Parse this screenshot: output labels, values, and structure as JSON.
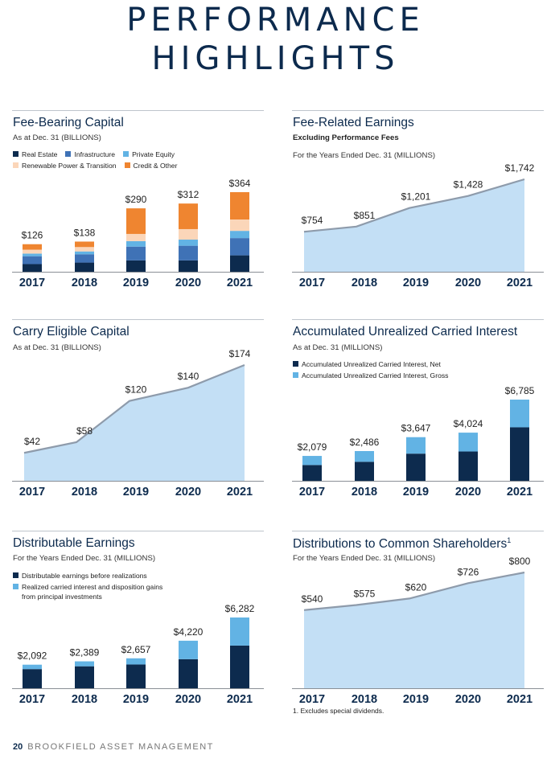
{
  "page": {
    "title_line1": "PERFORMANCE",
    "title_line2": "HIGHLIGHTS",
    "footer_number": "20",
    "footer_text": "BROOKFIELD ASSET MANAGEMENT",
    "footnote": "1. Excludes special dividends."
  },
  "colors": {
    "navy": "#0d2b4e",
    "mid_blue": "#3f72b6",
    "light_blue": "#62b3e4",
    "peach": "#fbd6b9",
    "orange": "#ef8530",
    "area_fill": "#c3dff5",
    "area_line": "#8e9bab"
  },
  "chart_data": [
    {
      "id": "fbc",
      "type": "bar",
      "stacked": true,
      "title": "Fee-Bearing Capital",
      "subtitle": "As at Dec. 31 (BILLIONS)",
      "categories": [
        "2017",
        "2018",
        "2019",
        "2020",
        "2021"
      ],
      "totals_labels": [
        "$126",
        "$138",
        "$290",
        "$312",
        "$364"
      ],
      "totals": [
        126,
        138,
        290,
        312,
        364
      ],
      "ylim": [
        0,
        364
      ],
      "series": [
        {
          "name": "Real Estate",
          "color": "#0d2b4e",
          "values": [
            35,
            42,
            52,
            52,
            75
          ]
        },
        {
          "name": "Infrastructure",
          "color": "#3f72b6",
          "values": [
            36,
            38,
            63,
            67,
            79
          ]
        },
        {
          "name": "Private Equity",
          "color": "#62b3e4",
          "values": [
            12,
            13,
            25,
            28,
            33
          ]
        },
        {
          "name": "Renewable Power & Transition",
          "color": "#fbd6b9",
          "values": [
            18,
            20,
            33,
            48,
            52
          ]
        },
        {
          "name": "Credit & Other",
          "color": "#ef8530",
          "values": [
            25,
            25,
            117,
            117,
            125
          ]
        }
      ],
      "legend_rows": [
        [
          0,
          1,
          2
        ],
        [
          3,
          4
        ]
      ]
    },
    {
      "id": "fre",
      "type": "area",
      "title": "Fee-Related Earnings",
      "subtitle_bold": "Excluding Performance Fees",
      "subtitle": "For the Years Ended Dec. 31 (MILLIONS)",
      "categories": [
        "2017",
        "2018",
        "2019",
        "2020",
        "2021"
      ],
      "values": [
        754,
        851,
        1201,
        1428,
        1742
      ],
      "value_labels": [
        "$754",
        "$851",
        "$1,201",
        "$1,428",
        "$1,742"
      ],
      "ylim": [
        0,
        1742
      ]
    },
    {
      "id": "cec",
      "type": "area",
      "title": "Carry Eligible Capital",
      "subtitle": "As at Dec. 31 (BILLIONS)",
      "categories": [
        "2017",
        "2018",
        "2019",
        "2020",
        "2021"
      ],
      "values": [
        42,
        58,
        120,
        140,
        174
      ],
      "value_labels": [
        "$42",
        "$58",
        "$120",
        "$140",
        "$174"
      ],
      "ylim": [
        0,
        174
      ]
    },
    {
      "id": "auci",
      "type": "bar",
      "stacked": true,
      "title": "Accumulated Unrealized Carried Interest",
      "subtitle": "As at Dec. 31 (MILLIONS)",
      "categories": [
        "2017",
        "2018",
        "2019",
        "2020",
        "2021"
      ],
      "totals_labels": [
        "$2,079",
        "$2,486",
        "$3,647",
        "$4,024",
        "$6,785"
      ],
      "totals": [
        2079,
        2486,
        3647,
        4024,
        6785
      ],
      "ylim": [
        0,
        6785
      ],
      "series": [
        {
          "name": "Accumulated Unrealized Carried Interest, Net",
          "color": "#0d2b4e",
          "values": [
            1320,
            1590,
            2270,
            2450,
            4470
          ]
        },
        {
          "name": "Accumulated Unrealized Carried Interest, Gross",
          "color": "#62b3e4",
          "values": [
            759,
            896,
            1377,
            1574,
            2315
          ]
        }
      ],
      "legend_rows": [
        [
          0
        ],
        [
          1
        ]
      ]
    },
    {
      "id": "de",
      "type": "bar",
      "stacked": true,
      "title": "Distributable Earnings",
      "subtitle": "For the Years Ended Dec. 31 (MILLIONS)",
      "categories": [
        "2017",
        "2018",
        "2019",
        "2020",
        "2021"
      ],
      "totals_labels": [
        "$2,092",
        "$2,389",
        "$2,657",
        "$4,220",
        "$6,282"
      ],
      "totals": [
        2092,
        2389,
        2657,
        4220,
        6282
      ],
      "ylim": [
        0,
        6282
      ],
      "series": [
        {
          "name": "Distributable earnings before realizations",
          "color": "#0d2b4e",
          "values": [
            1700,
            1950,
            2110,
            2580,
            3790
          ]
        },
        {
          "name": "Realized carried interest and disposition gains from principal investments",
          "color": "#62b3e4",
          "values": [
            392,
            439,
            547,
            1640,
            2492
          ]
        }
      ],
      "legend_rows": [
        [
          0
        ],
        [
          1
        ]
      ],
      "legend_wrap": [
        "Realized carried interest and disposition gains",
        "from principal investments"
      ]
    },
    {
      "id": "dcs",
      "type": "area",
      "title": "Distributions to Common Shareholders",
      "title_sup": "1",
      "subtitle": "For the Years Ended Dec. 31 (MILLIONS)",
      "categories": [
        "2017",
        "2018",
        "2019",
        "2020",
        "2021"
      ],
      "values": [
        540,
        575,
        620,
        726,
        800
      ],
      "value_labels": [
        "$540",
        "$575",
        "$620",
        "$726",
        "$800"
      ],
      "ylim": [
        0,
        800
      ]
    }
  ]
}
